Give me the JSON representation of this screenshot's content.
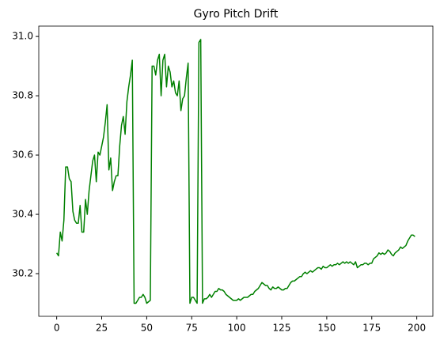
{
  "chart_data": {
    "type": "line",
    "title": "Gyro Pitch Drift",
    "x": [
      0,
      1,
      2,
      3,
      4,
      5,
      6,
      7,
      8,
      9,
      10,
      11,
      12,
      13,
      14,
      15,
      16,
      17,
      18,
      19,
      20,
      21,
      22,
      23,
      24,
      25,
      26,
      27,
      28,
      29,
      30,
      31,
      32,
      33,
      34,
      35,
      36,
      37,
      38,
      39,
      40,
      41,
      42,
      43,
      44,
      45,
      46,
      47,
      48,
      49,
      50,
      51,
      52,
      53,
      54,
      55,
      56,
      57,
      58,
      59,
      60,
      61,
      62,
      63,
      64,
      65,
      66,
      67,
      68,
      69,
      70,
      71,
      72,
      73,
      74,
      75,
      76,
      77,
      78,
      79,
      80,
      81,
      82,
      83,
      84,
      85,
      86,
      87,
      88,
      89,
      90,
      91,
      92,
      93,
      94,
      95,
      96,
      97,
      98,
      99,
      100,
      101,
      102,
      103,
      104,
      105,
      106,
      107,
      108,
      109,
      110,
      111,
      112,
      113,
      114,
      115,
      116,
      117,
      118,
      119,
      120,
      121,
      122,
      123,
      124,
      125,
      126,
      127,
      128,
      129,
      130,
      131,
      132,
      133,
      134,
      135,
      136,
      137,
      138,
      139,
      140,
      141,
      142,
      143,
      144,
      145,
      146,
      147,
      148,
      149,
      150,
      151,
      152,
      153,
      154,
      155,
      156,
      157,
      158,
      159,
      160,
      161,
      162,
      163,
      164,
      165,
      166,
      167,
      168,
      169,
      170,
      171,
      172,
      173,
      174,
      175,
      176,
      177,
      178,
      179,
      180,
      181,
      182,
      183,
      184,
      185,
      186,
      187,
      188,
      189,
      190,
      191,
      192,
      193,
      194,
      195,
      196,
      197,
      198,
      199
    ],
    "series": [
      {
        "color": "#008000",
        "values": [
          30.27,
          30.26,
          30.34,
          30.31,
          30.38,
          30.56,
          30.56,
          30.52,
          30.51,
          30.41,
          30.38,
          30.37,
          30.37,
          30.43,
          30.34,
          30.34,
          30.45,
          30.4,
          30.48,
          30.53,
          30.58,
          30.6,
          30.51,
          30.61,
          30.6,
          30.63,
          30.66,
          30.71,
          30.77,
          30.55,
          30.59,
          30.48,
          30.51,
          30.53,
          30.53,
          30.63,
          30.7,
          30.73,
          30.67,
          30.78,
          30.83,
          30.87,
          30.92,
          30.1,
          30.1,
          30.11,
          30.12,
          30.12,
          30.13,
          30.12,
          30.1,
          30.105,
          30.11,
          30.9,
          30.9,
          30.87,
          30.92,
          30.94,
          30.8,
          30.92,
          30.94,
          30.83,
          30.9,
          30.88,
          30.83,
          30.85,
          30.81,
          30.8,
          30.85,
          30.75,
          30.79,
          30.8,
          30.86,
          30.91,
          30.1,
          30.12,
          30.12,
          30.11,
          30.1,
          30.98,
          30.99,
          30.1,
          30.115,
          30.115,
          30.12,
          30.13,
          30.12,
          30.13,
          30.14,
          30.14,
          30.15,
          30.145,
          30.145,
          30.14,
          30.13,
          30.125,
          30.12,
          30.115,
          30.11,
          30.11,
          30.11,
          30.115,
          30.11,
          30.115,
          30.12,
          30.12,
          30.12,
          30.125,
          30.13,
          30.13,
          30.14,
          30.145,
          30.15,
          30.16,
          30.17,
          30.165,
          30.16,
          30.16,
          30.15,
          30.145,
          30.155,
          30.15,
          30.15,
          30.155,
          30.15,
          30.145,
          30.145,
          30.15,
          30.15,
          30.16,
          30.17,
          30.175,
          30.175,
          30.18,
          30.185,
          30.19,
          30.19,
          30.2,
          30.205,
          30.2,
          30.205,
          30.21,
          30.205,
          30.21,
          30.215,
          30.22,
          30.22,
          30.215,
          30.225,
          30.22,
          30.22,
          30.225,
          30.23,
          30.225,
          30.23,
          30.23,
          30.235,
          30.23,
          30.235,
          30.24,
          30.235,
          30.24,
          30.235,
          30.24,
          30.235,
          30.23,
          30.24,
          30.22,
          30.225,
          30.23,
          30.23,
          30.235,
          30.235,
          30.23,
          30.235,
          30.235,
          30.25,
          30.255,
          30.26,
          30.27,
          30.265,
          30.27,
          30.265,
          30.27,
          30.28,
          30.275,
          30.265,
          30.26,
          30.27,
          30.275,
          30.28,
          30.29,
          30.285,
          30.29,
          30.295,
          30.31,
          30.32,
          30.33,
          30.33,
          30.325
        ]
      }
    ],
    "xlim": [
      -9.95,
      208.95
    ],
    "xticks": [
      0,
      25,
      50,
      75,
      100,
      125,
      150,
      175,
      200
    ],
    "ylim": [
      30.056,
      31.035
    ],
    "yticks": [
      30.2,
      30.4,
      30.6,
      30.8,
      {
        "value": 31.0,
        "label": "31.0"
      }
    ]
  }
}
